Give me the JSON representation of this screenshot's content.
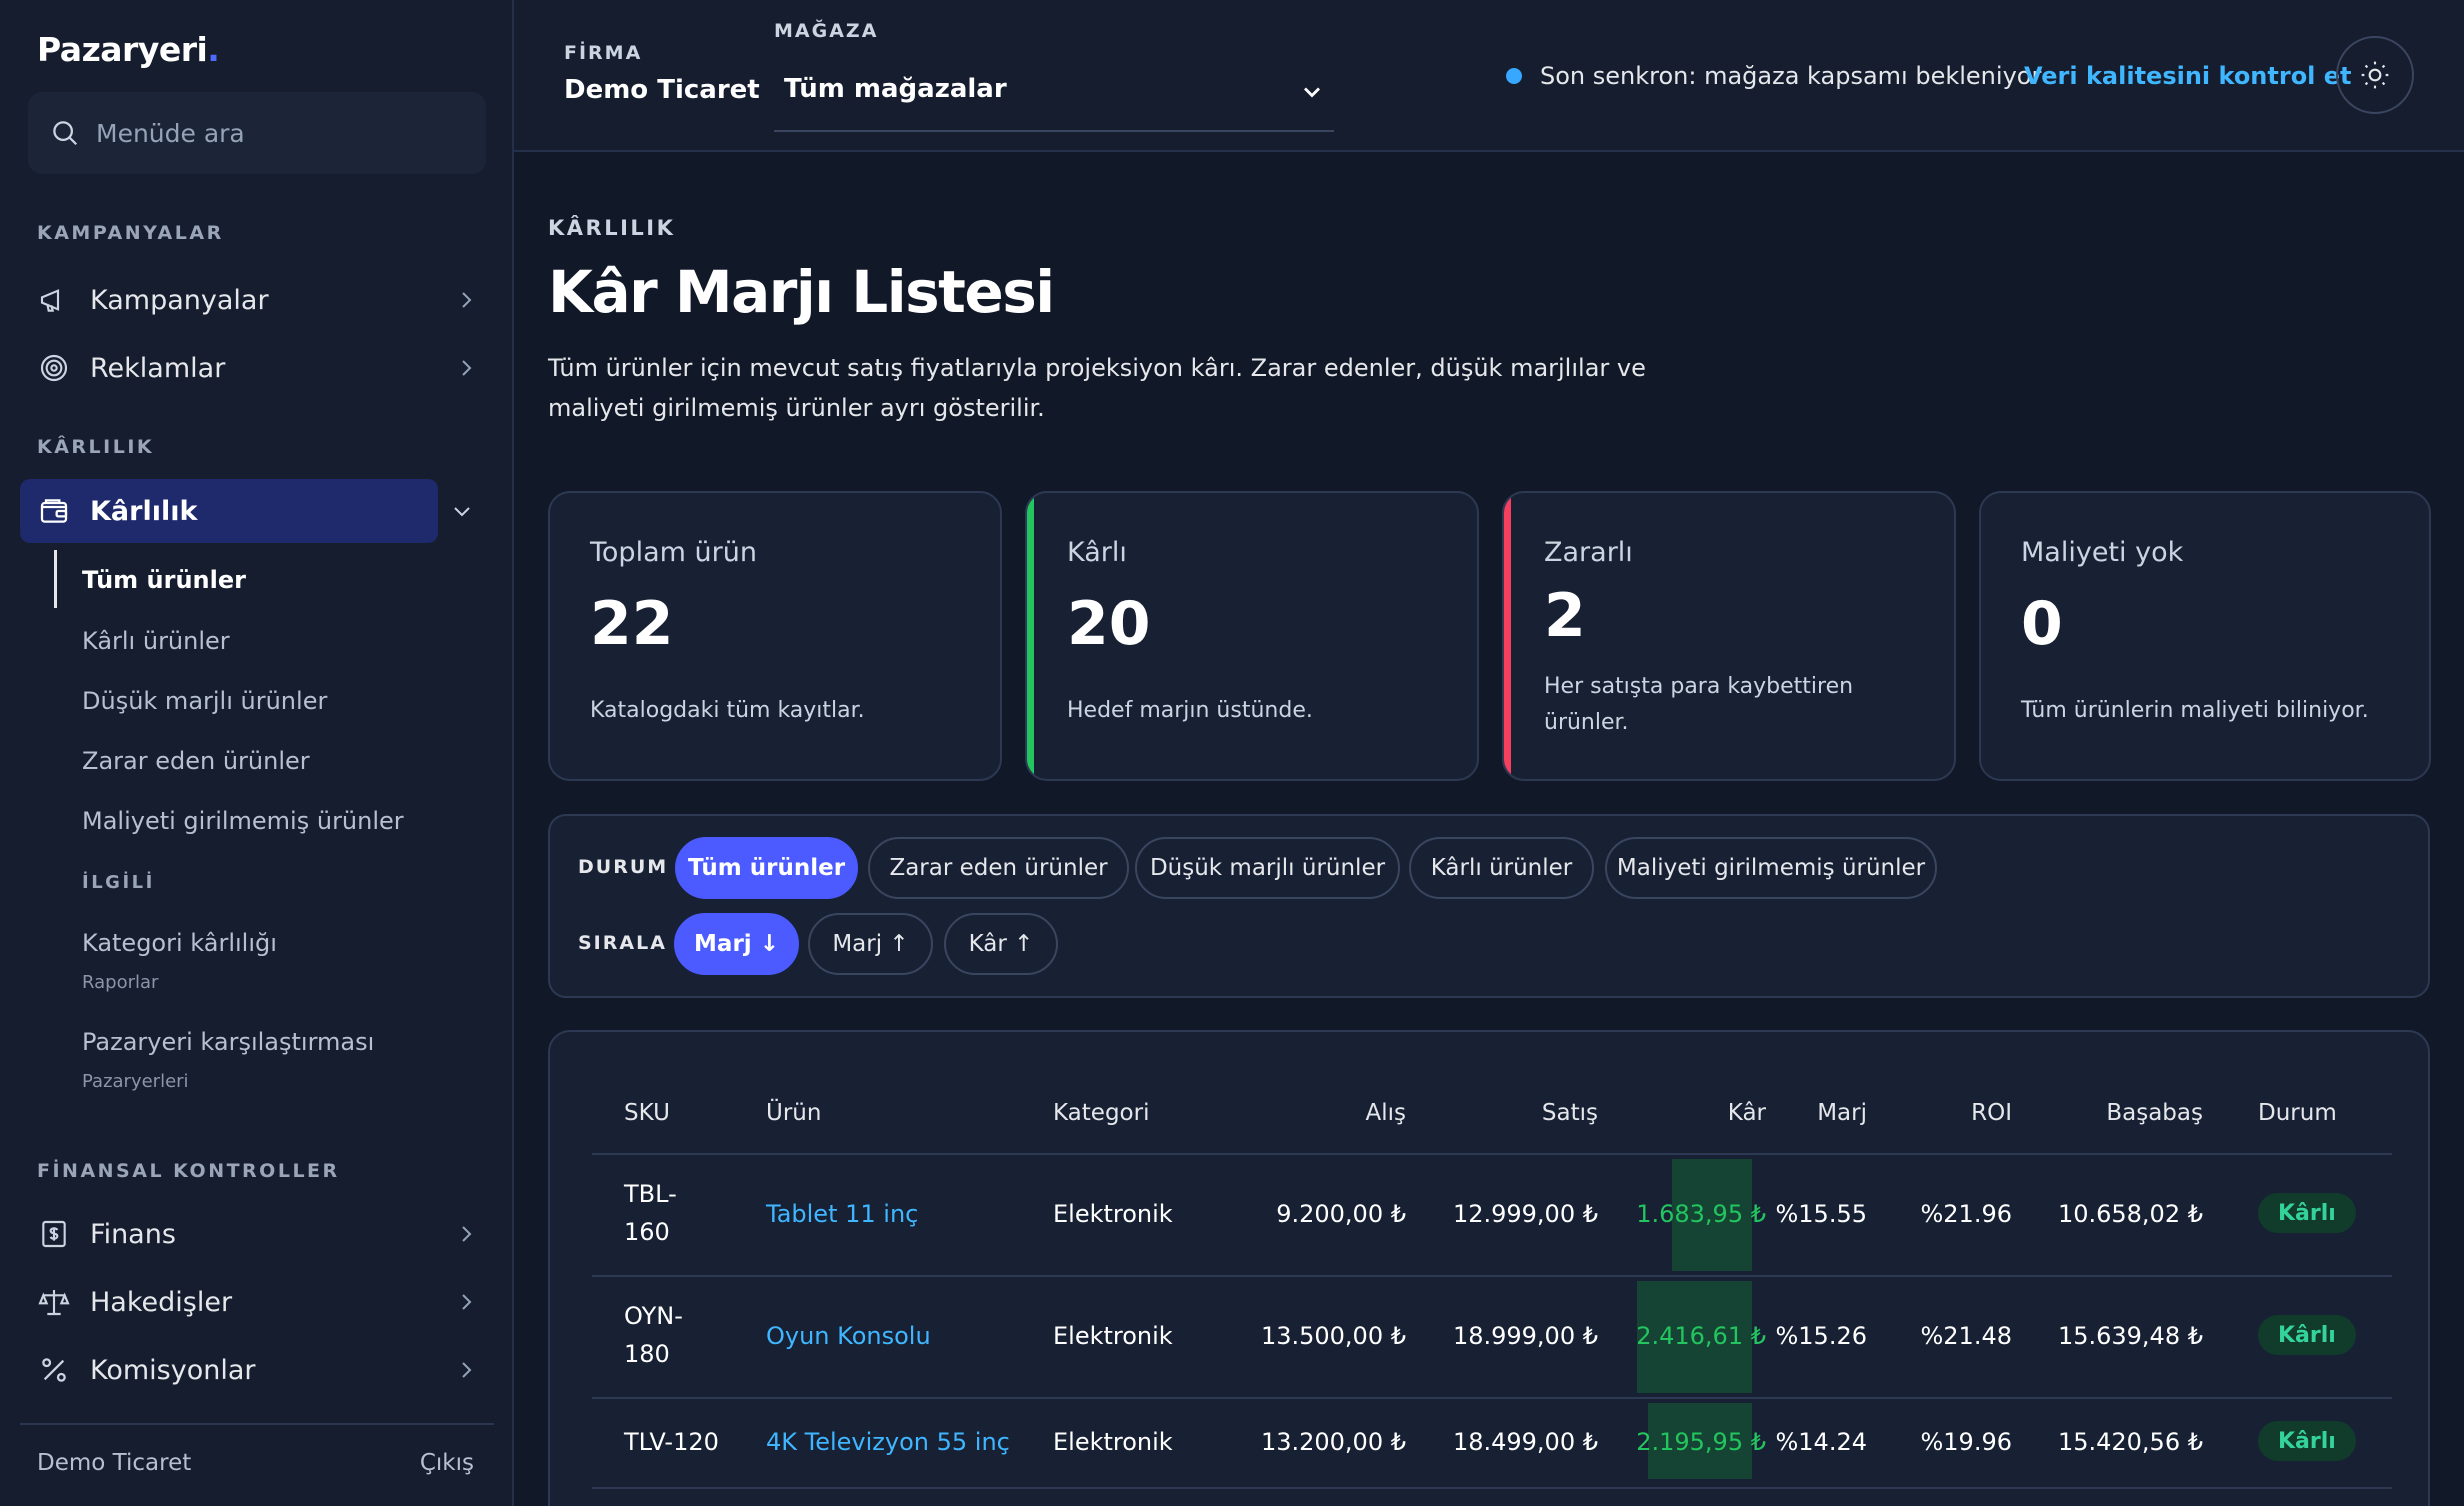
{
  "brand": {
    "name": "Pazaryeri",
    "dot": "."
  },
  "sidebar": {
    "search_placeholder": "Menüde ara",
    "sections": {
      "campaigns": "KAMPANYALAR",
      "profitability": "KÂRLILIK",
      "related": "İLGİLİ",
      "finance": "FİNANSAL KONTROLLER"
    },
    "items": {
      "campaigns": "Kampanyalar",
      "ads": "Reklamlar",
      "profitability": "Kârlılık",
      "finance": "Finans",
      "settlements": "Hakedişler",
      "commissions": "Komisyonlar"
    },
    "sub_items": {
      "all": "Tüm ürünler",
      "profitable": "Kârlı ürünler",
      "low_margin": "Düşük marjlı ürünler",
      "loss": "Zarar eden ürünler",
      "no_cost": "Maliyeti girilmemiş ürünler"
    },
    "related": {
      "category_title": "Kategori kârlılığı",
      "category_caption": "Raporlar",
      "marketplace_title": "Pazaryeri karşılaştırması",
      "marketplace_caption": "Pazaryerleri"
    },
    "user": "Demo Ticaret",
    "logout": "Çıkış"
  },
  "topbar": {
    "company_label": "FİRMA",
    "company_value": "Demo Ticaret",
    "store_label": "MAĞAZA",
    "store_value": "Tüm mağazalar",
    "sync_text": "Son senkron: mağaza kapsamı bekleniyor",
    "data_quality_link": "Veri kalitesini kontrol et"
  },
  "page": {
    "eyebrow": "KÂRLILIK",
    "title": "Kâr Marjı Listesi",
    "description": "Tüm ürünler için mevcut satış fiyatlarıyla projeksiyon kârı. Zarar edenler, düşük marjlılar ve maliyeti girilmemiş ürünler ayrı gösterilir."
  },
  "stats": [
    {
      "label": "Toplam ürün",
      "value": "22",
      "note": "Katalogdaki tüm kayıtlar.",
      "accent": "#182134"
    },
    {
      "label": "Kârlı",
      "value": "20",
      "note": "Hedef marjın üstünde.",
      "accent": "#22c55e"
    },
    {
      "label": "Zararlı",
      "value": "2",
      "note": "Her satışta para kaybettiren ürünler.",
      "accent": "#f43f5e"
    },
    {
      "label": "Maliyeti yok",
      "value": "0",
      "note": "Tüm ürünlerin maliyeti biliniyor.",
      "accent": "#182134"
    }
  ],
  "filters": {
    "status_label": "DURUM",
    "status_options": [
      "Tüm ürünler",
      "Zarar eden ürünler",
      "Düşük marjlı ürünler",
      "Kârlı ürünler",
      "Maliyeti girilmemiş ürünler"
    ],
    "status_selected": "Tüm ürünler",
    "sort_label": "SIRALA",
    "sort_options": [
      "Marj ↓",
      "Marj ↑",
      "Kâr ↑"
    ],
    "sort_selected": "Marj ↓"
  },
  "table": {
    "columns": [
      "SKU",
      "Ürün",
      "Kategori",
      "Alış",
      "Satış",
      "Kâr",
      "Marj",
      "ROI",
      "Başabaş",
      "Durum"
    ],
    "rows": [
      {
        "sku_1": "TBL-",
        "sku_2": "160",
        "product": "Tablet 11 inç",
        "category": "Elektronik",
        "buy": "9.200,00 ₺",
        "sell": "12.999,00 ₺",
        "profit": "1.683,95 ₺",
        "margin": "%15.55",
        "roi": "%21.96",
        "breakeven": "10.658,02 ₺",
        "status": "Kârlı"
      },
      {
        "sku_1": "OYN-",
        "sku_2": "180",
        "product": "Oyun Konsolu",
        "category": "Elektronik",
        "buy": "13.500,00 ₺",
        "sell": "18.999,00 ₺",
        "profit": "2.416,61 ₺",
        "margin": "%15.26",
        "roi": "%21.48",
        "breakeven": "15.639,48 ₺",
        "status": "Kârlı"
      },
      {
        "sku_1": "TLV-120",
        "sku_2": "",
        "product": "4K Televizyon 55 inç",
        "category": "Elektronik",
        "buy": "13.200,00 ₺",
        "sell": "18.499,00 ₺",
        "profit": "2.195,95 ₺",
        "margin": "%14.24",
        "roi": "%19.96",
        "breakeven": "15.420,56 ₺",
        "status": "Kârlı"
      }
    ]
  },
  "colors": {
    "accent": "#4b5bff",
    "link": "#3fb6ff",
    "profit": "#22c55e",
    "loss": "#f43f5e"
  }
}
